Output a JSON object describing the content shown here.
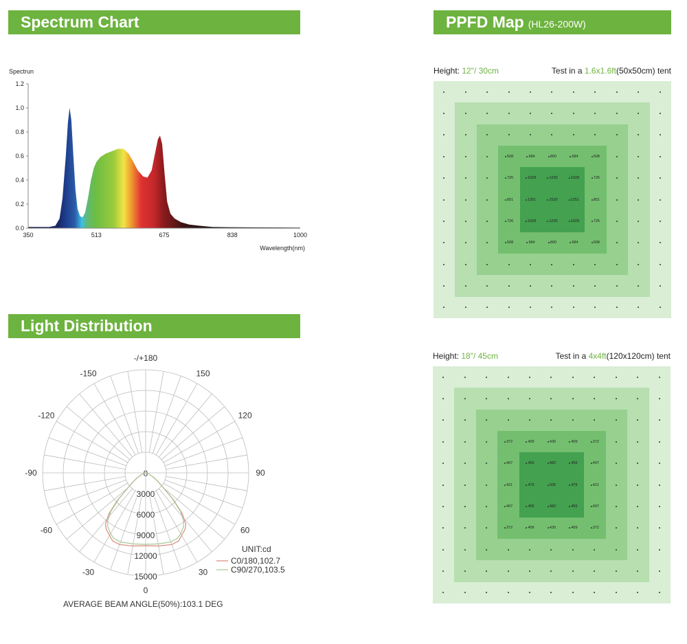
{
  "spectrum": {
    "header": "Spectrum Chart"
  },
  "ppfd": {
    "header": "PPFD Map",
    "model": "(HL26-200W)",
    "maps": [
      {
        "height_label": "Height: ",
        "height_value": "12\"/ 30cm",
        "tent_prefix": "Test in a ",
        "tent_size": "1.6x1.6ft",
        "tent_suffix": "(50x50cm) tent",
        "values": [
          [
            "508",
            "684",
            "800",
            "684",
            "508"
          ],
          [
            "726",
            "1028",
            "1230",
            "1028",
            "726"
          ],
          [
            "851",
            "1251",
            "1520",
            "1251",
            "851"
          ],
          [
            "726",
            "1028",
            "1230",
            "1028",
            "726"
          ],
          [
            "508",
            "684",
            "800",
            "684",
            "508"
          ]
        ]
      },
      {
        "height_label": "Height: ",
        "height_value": "18\"/ 45cm",
        "tent_prefix": "Test in a ",
        "tent_size": "4x4ft",
        "tent_suffix": "(120x120cm) tent",
        "values": [
          [
            "372",
            "409",
            "430",
            "409",
            "372"
          ],
          [
            "407",
            "455",
            "482",
            "455",
            "407"
          ],
          [
            "421",
            "475",
            "505",
            "475",
            "421"
          ],
          [
            "407",
            "455",
            "482",
            "455",
            "407"
          ],
          [
            "372",
            "409",
            "430",
            "409",
            "372"
          ]
        ]
      }
    ],
    "ring_colors": [
      "#d9eed5",
      "#b7dfb0",
      "#97d08f",
      "#73bf6f",
      "#43a150"
    ]
  },
  "distribution": {
    "header": "Light Distribution"
  },
  "chart_data": [
    {
      "type": "area",
      "title": "Spectrum Chart",
      "ylabel": "Spectrun",
      "xlabel": "Wavelength(nm)",
      "xlim": [
        350,
        1000
      ],
      "ylim": [
        0,
        1.2
      ],
      "xticks": [
        "350",
        "513",
        "675",
        "838",
        "1000"
      ],
      "yticks": [
        "0.0",
        "0.2",
        "0.4",
        "0.6",
        "0.8",
        "1.0",
        "1.2"
      ],
      "x": [
        350,
        400,
        415,
        425,
        432,
        440,
        445,
        449,
        453,
        458,
        463,
        468,
        474,
        480,
        486,
        493,
        500,
        507,
        513,
        522,
        535,
        550,
        565,
        578,
        590,
        600,
        612,
        625,
        635,
        645,
        653,
        660,
        665,
        670,
        676,
        682,
        690,
        700,
        715,
        735,
        760,
        790,
        830,
        900,
        1000
      ],
      "y": [
        0.01,
        0.01,
        0.02,
        0.08,
        0.25,
        0.6,
        0.88,
        1.0,
        0.9,
        0.6,
        0.32,
        0.16,
        0.1,
        0.09,
        0.13,
        0.25,
        0.4,
        0.5,
        0.55,
        0.59,
        0.62,
        0.64,
        0.66,
        0.66,
        0.62,
        0.56,
        0.48,
        0.43,
        0.42,
        0.48,
        0.62,
        0.74,
        0.77,
        0.7,
        0.45,
        0.22,
        0.12,
        0.08,
        0.05,
        0.03,
        0.02,
        0.01,
        0.008,
        0.006,
        0.005
      ]
    },
    {
      "type": "polar",
      "title": "Light Distribution",
      "angle_labels": [
        "-/+180",
        "150",
        "120",
        "90",
        "60",
        "30",
        "0",
        "-30",
        "-60",
        "-90",
        "-120",
        "-150"
      ],
      "radial_labels": [
        "0",
        "3000",
        "6000",
        "9000",
        "12000",
        "15000"
      ],
      "rlim": [
        0,
        15000
      ],
      "unit": "UNIT:cd",
      "series": [
        {
          "name": "C0/180,102.7",
          "color": "#d98a7a",
          "angles": [
            0,
            10,
            20,
            26,
            30,
            35,
            38,
            42,
            46,
            50,
            55,
            60,
            70,
            80,
            90
          ],
          "values": [
            10600,
            10800,
            11100,
            11000,
            10500,
            10000,
            9500,
            8000,
            5600,
            3400,
            2200,
            1400,
            600,
            200,
            0
          ]
        },
        {
          "name": "C90/270,103.5",
          "color": "#a9c79a",
          "angles": [
            0,
            10,
            20,
            26,
            30,
            35,
            38,
            42,
            46,
            50,
            55,
            60,
            70,
            80,
            90
          ],
          "values": [
            10400,
            10500,
            10700,
            10600,
            10200,
            9600,
            9000,
            7600,
            5400,
            3300,
            2100,
            1300,
            550,
            180,
            0
          ]
        }
      ],
      "footer": "AVERAGE BEAM ANGLE(50%):103.1 DEG"
    }
  ]
}
